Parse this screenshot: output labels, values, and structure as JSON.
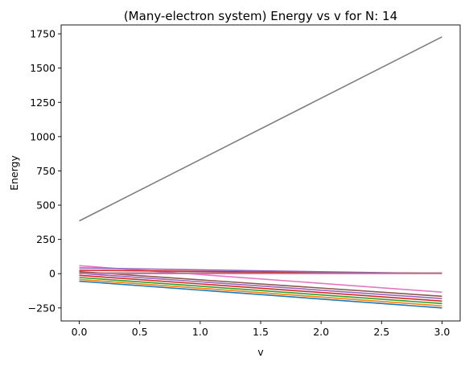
{
  "chart_data": {
    "type": "line",
    "title": "(Many-electron system) Energy vs v for N: 14",
    "xlabel": "v",
    "ylabel": "Energy",
    "xlim": [
      -0.15,
      3.15
    ],
    "ylim": [
      -345,
      1815
    ],
    "xticks": [
      0.0,
      0.5,
      1.0,
      1.5,
      2.0,
      2.5,
      3.0
    ],
    "xtick_labels": [
      "0.0",
      "0.5",
      "1.0",
      "1.5",
      "2.0",
      "2.5",
      "3.0"
    ],
    "yticks": [
      -250,
      0,
      250,
      500,
      750,
      1000,
      1250,
      1500,
      1750
    ],
    "ytick_labels": [
      "−250",
      "0",
      "250",
      "500",
      "750",
      "1000",
      "1250",
      "1500",
      "1750"
    ],
    "grid": false,
    "legend": false,
    "series": [
      {
        "color": "#1f77b4",
        "x": [
          0,
          3
        ],
        "y": [
          -55,
          -250
        ]
      },
      {
        "color": "#ff7f0e",
        "x": [
          0,
          3
        ],
        "y": [
          -42,
          -235
        ]
      },
      {
        "color": "#2ca02c",
        "x": [
          0,
          3
        ],
        "y": [
          -28,
          -218
        ]
      },
      {
        "color": "#d62728",
        "x": [
          0,
          3
        ],
        "y": [
          -12,
          -200
        ]
      },
      {
        "color": "#9467bd",
        "x": [
          0,
          3
        ],
        "y": [
          2,
          -182
        ]
      },
      {
        "color": "#8c564b",
        "x": [
          0,
          3
        ],
        "y": [
          15,
          -165
        ]
      },
      {
        "color": "#e377c2",
        "x": [
          0,
          3
        ],
        "y": [
          58,
          -135
        ]
      },
      {
        "color": "#d62728",
        "x": [
          0,
          3
        ],
        "y": [
          25,
          0
        ]
      },
      {
        "color": "#9467bd",
        "x": [
          0,
          3
        ],
        "y": [
          42,
          0
        ]
      },
      {
        "color": "#8c564b",
        "x": [
          0,
          3
        ],
        "y": [
          5,
          5
        ]
      },
      {
        "color": "#e377c2",
        "x": [
          0,
          3
        ],
        "y": [
          0,
          0
        ]
      },
      {
        "color": "#7f7f7f",
        "x": [
          0,
          3
        ],
        "y": [
          385,
          1728
        ]
      }
    ]
  }
}
